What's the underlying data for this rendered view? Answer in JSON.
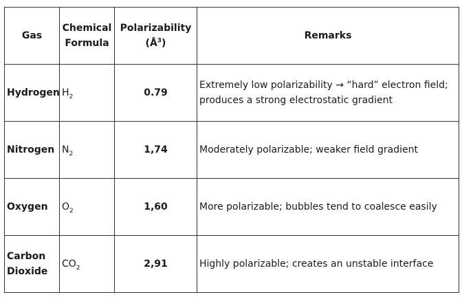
{
  "table": {
    "headers": {
      "gas": "Gas",
      "formula_line1": "Chemical",
      "formula_line2": "Formula",
      "pol_line1": "Polarizability",
      "pol_unit_open": "(Å",
      "pol_unit_exp": "3",
      "pol_unit_close": ")",
      "remarks": "Remarks"
    },
    "rows": [
      {
        "gas_line1": "Hydrogen",
        "gas_line2": "",
        "formula_base": "H",
        "formula_sub": "2",
        "polarizability": "0.79",
        "remarks_line1": "Extremely low polarizability → “hard” electron field;",
        "remarks_line2": "produces a strong electrostatic gradient"
      },
      {
        "gas_line1": "Nitrogen",
        "gas_line2": "",
        "formula_base": "N",
        "formula_sub": "2",
        "polarizability": "1,74",
        "remarks_line1": "Moderately polarizable; weaker field gradient",
        "remarks_line2": ""
      },
      {
        "gas_line1": "Oxygen",
        "gas_line2": "",
        "formula_base": "O",
        "formula_sub": "2",
        "polarizability": "1,60",
        "remarks_line1": "More polarizable; bubbles tend to coalesce easily",
        "remarks_line2": ""
      },
      {
        "gas_line1": "Carbon",
        "gas_line2": "Dioxide",
        "formula_base": "CO",
        "formula_sub": "2",
        "polarizability": "2,91",
        "remarks_line1": "Highly polarizable; creates an unstable interface",
        "remarks_line2": ""
      }
    ]
  }
}
